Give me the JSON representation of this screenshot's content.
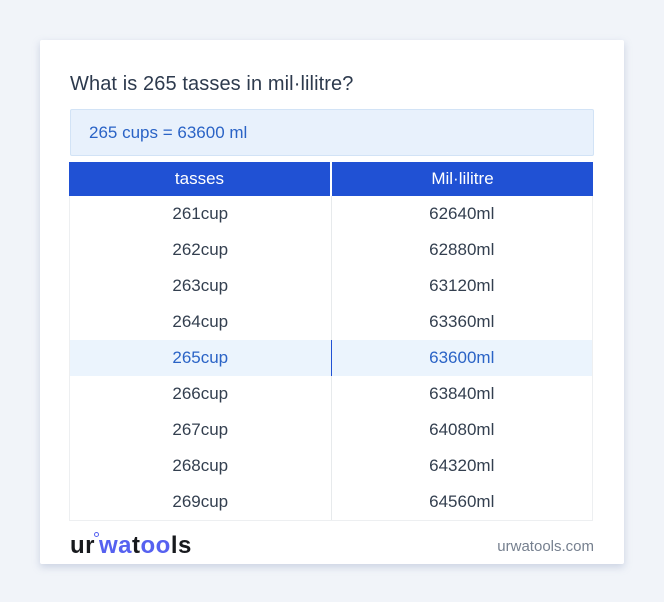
{
  "page": {
    "title": "What is 265 tasses in mil·lilitre?",
    "result_text": "265 cups = 63600 ml"
  },
  "table": {
    "headers": [
      "tasses",
      "Mil·lilitre"
    ],
    "highlighted_index": 4,
    "rows": [
      {
        "cup": "261cup",
        "ml": "62640ml"
      },
      {
        "cup": "262cup",
        "ml": "62880ml"
      },
      {
        "cup": "263cup",
        "ml": "63120ml"
      },
      {
        "cup": "264cup",
        "ml": "63360ml"
      },
      {
        "cup": "265cup",
        "ml": "63600ml"
      },
      {
        "cup": "266cup",
        "ml": "63840ml"
      },
      {
        "cup": "267cup",
        "ml": "64080ml"
      },
      {
        "cup": "268cup",
        "ml": "64320ml"
      },
      {
        "cup": "269cup",
        "ml": "64560ml"
      }
    ]
  },
  "footer": {
    "logo": {
      "p1": "ur",
      "p2": "wa",
      "p3": "t",
      "p4": "oo",
      "p5": "ls"
    },
    "domain": "urwatools.com"
  },
  "colors": {
    "page_background": "#f1f4f9",
    "card_background": "#ffffff",
    "header_blue": "#2051d4",
    "accent_blue_text": "#2a63c6",
    "result_box_background": "#e8f1fc",
    "highlight_row_background": "#ebf4fd",
    "logo_blue": "#5661f0",
    "body_text": "#333f4f"
  }
}
